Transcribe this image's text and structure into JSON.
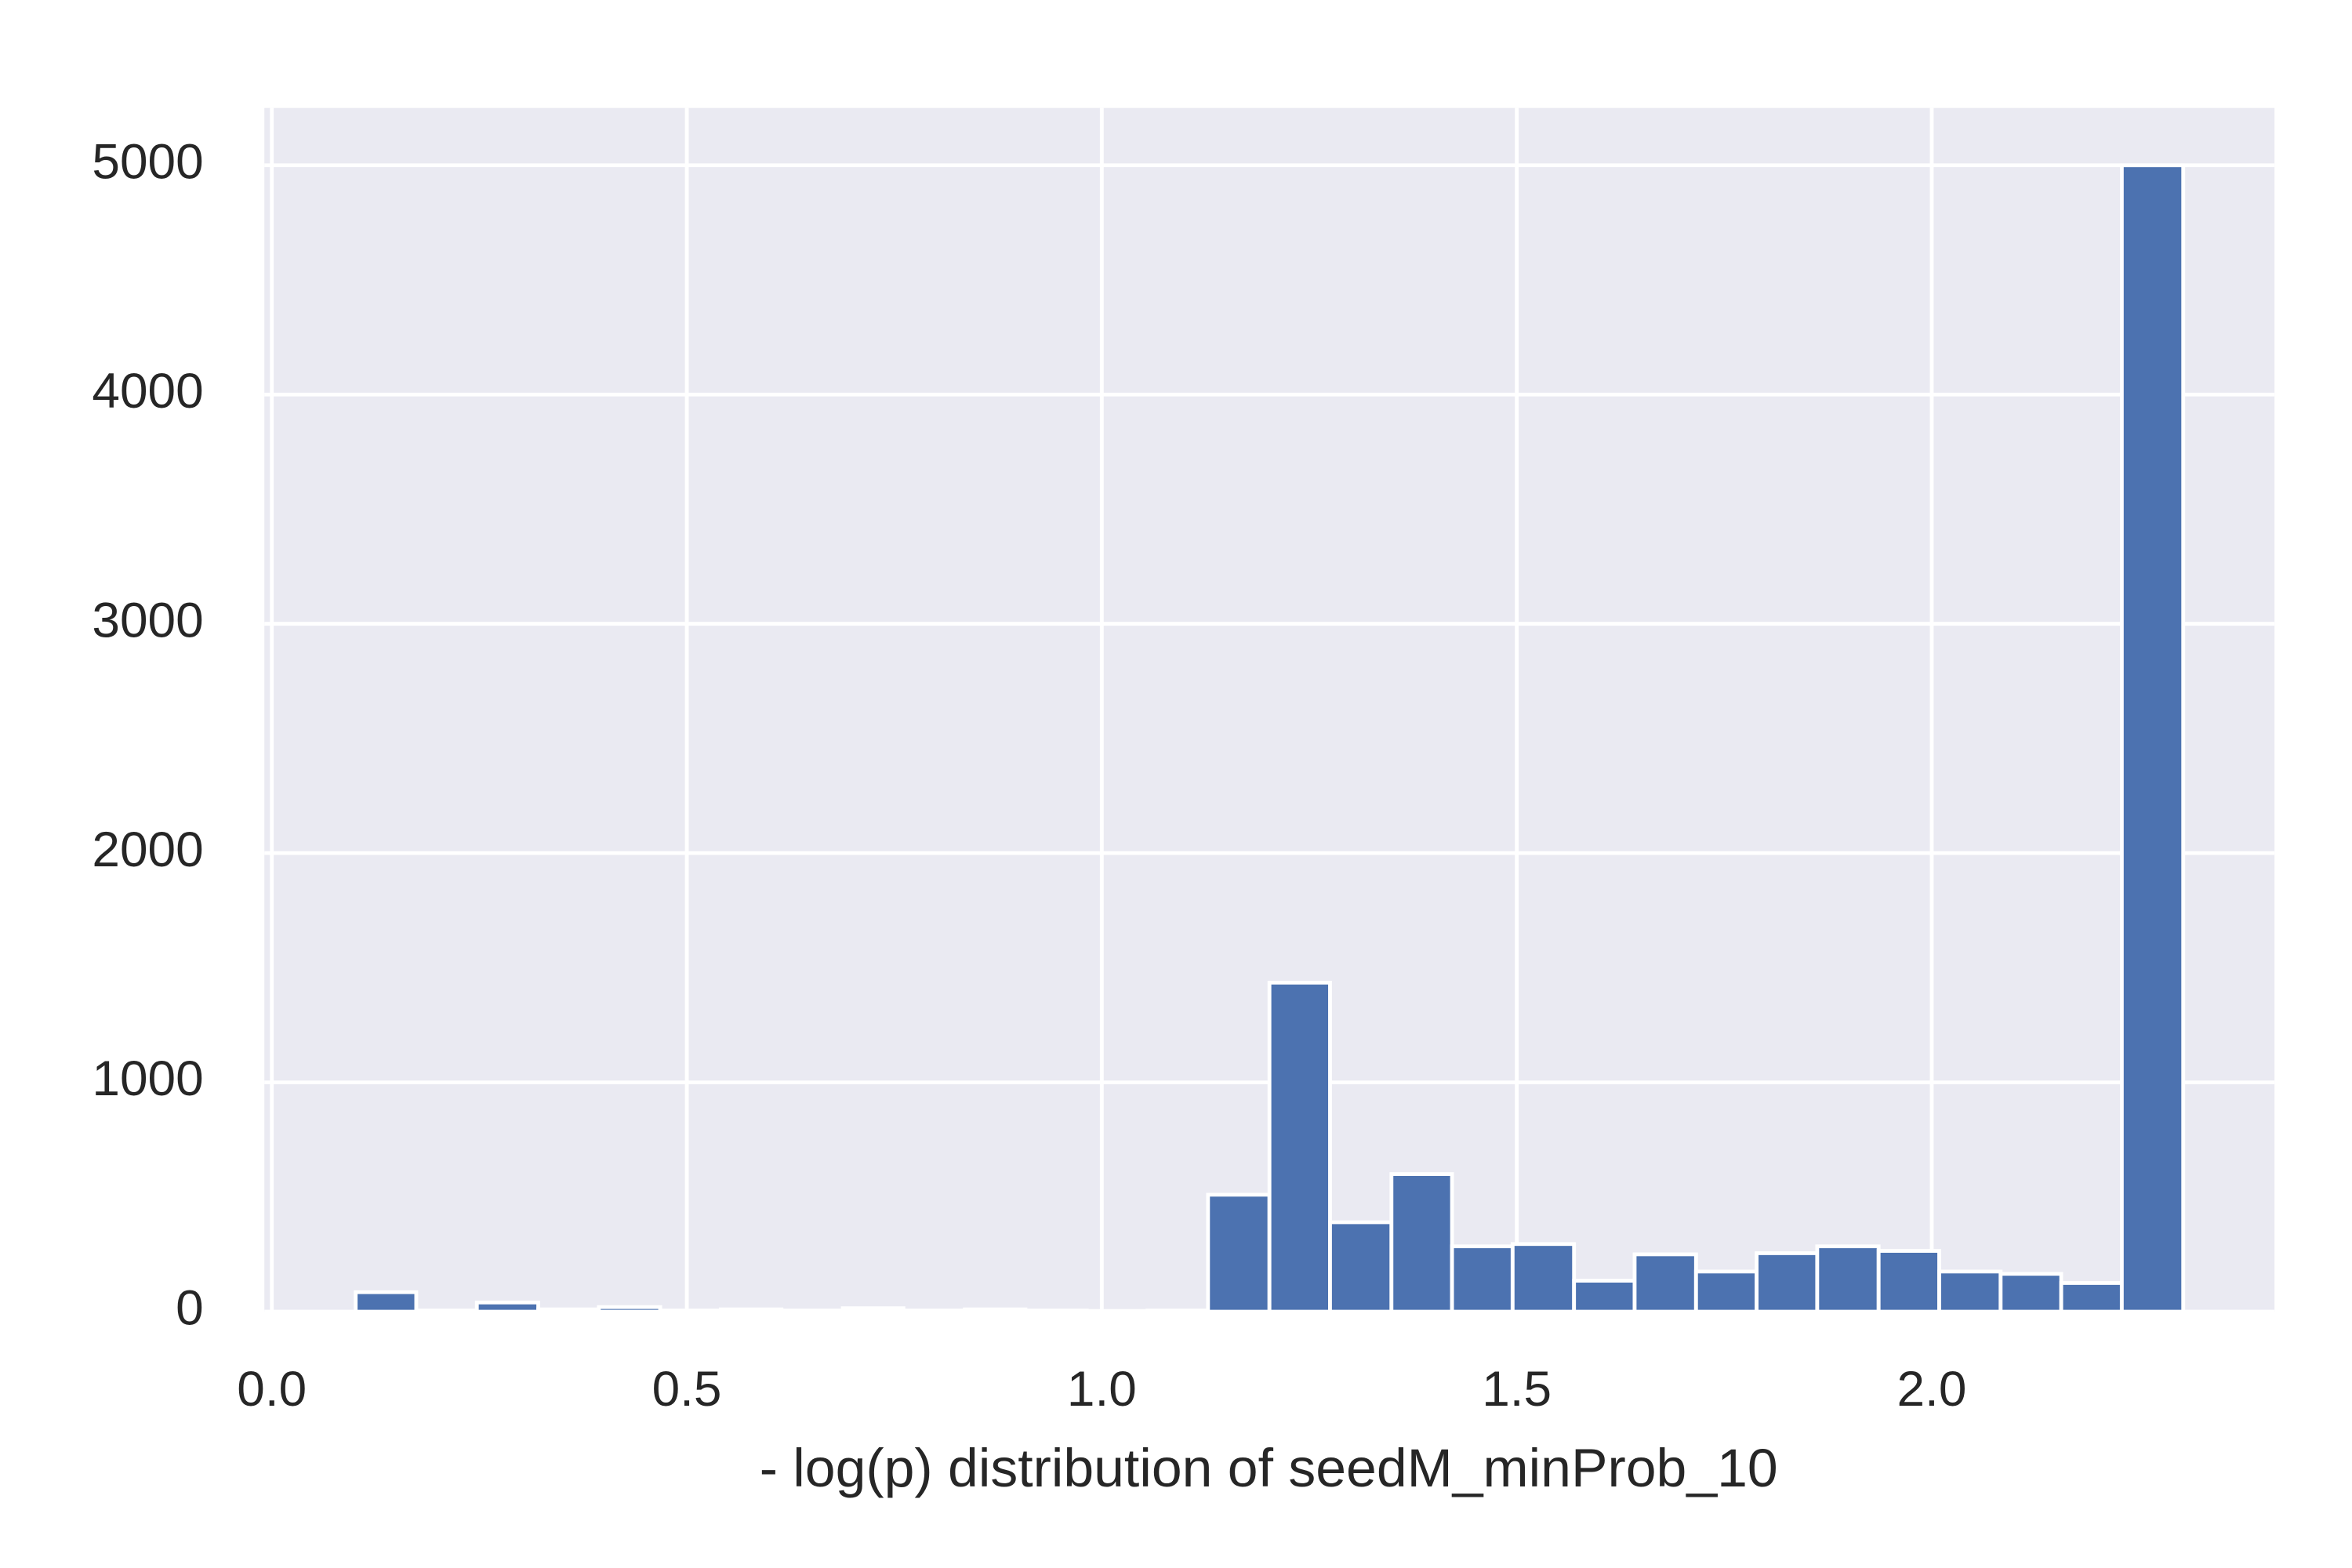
{
  "chart_data": {
    "type": "histogram",
    "xlabel": "- log(p) distribution of seedM_minProb_10",
    "bins": [
      0.101,
      0.174,
      0.247,
      0.321,
      0.394,
      0.468,
      0.541,
      0.614,
      0.688,
      0.761,
      0.835,
      0.908,
      0.982,
      1.055,
      1.128,
      1.202,
      1.275,
      1.349,
      1.422,
      1.495,
      1.569,
      1.642,
      1.716,
      1.789,
      1.862,
      1.936,
      2.009,
      2.083,
      2.156,
      2.229,
      2.303
    ],
    "values": [
      85,
      5,
      40,
      10,
      20,
      5,
      10,
      5,
      15,
      5,
      10,
      5,
      3,
      5,
      510,
      1435,
      390,
      600,
      285,
      295,
      135,
      250,
      175,
      255,
      285,
      265,
      175,
      165,
      125,
      5000
    ],
    "color": "#4c72b0",
    "xlim": [
      -0.009,
      2.413
    ],
    "ylim": [
      0,
      5250
    ],
    "xticks": [
      {
        "value": 0,
        "label": "0.0"
      },
      0.5,
      {
        "value": 1,
        "label": "1.0"
      },
      1.5,
      {
        "value": 2,
        "label": "2.0"
      }
    ],
    "yticks": [
      0,
      1000,
      2000,
      3000,
      4000,
      5000
    ],
    "grid": true
  }
}
